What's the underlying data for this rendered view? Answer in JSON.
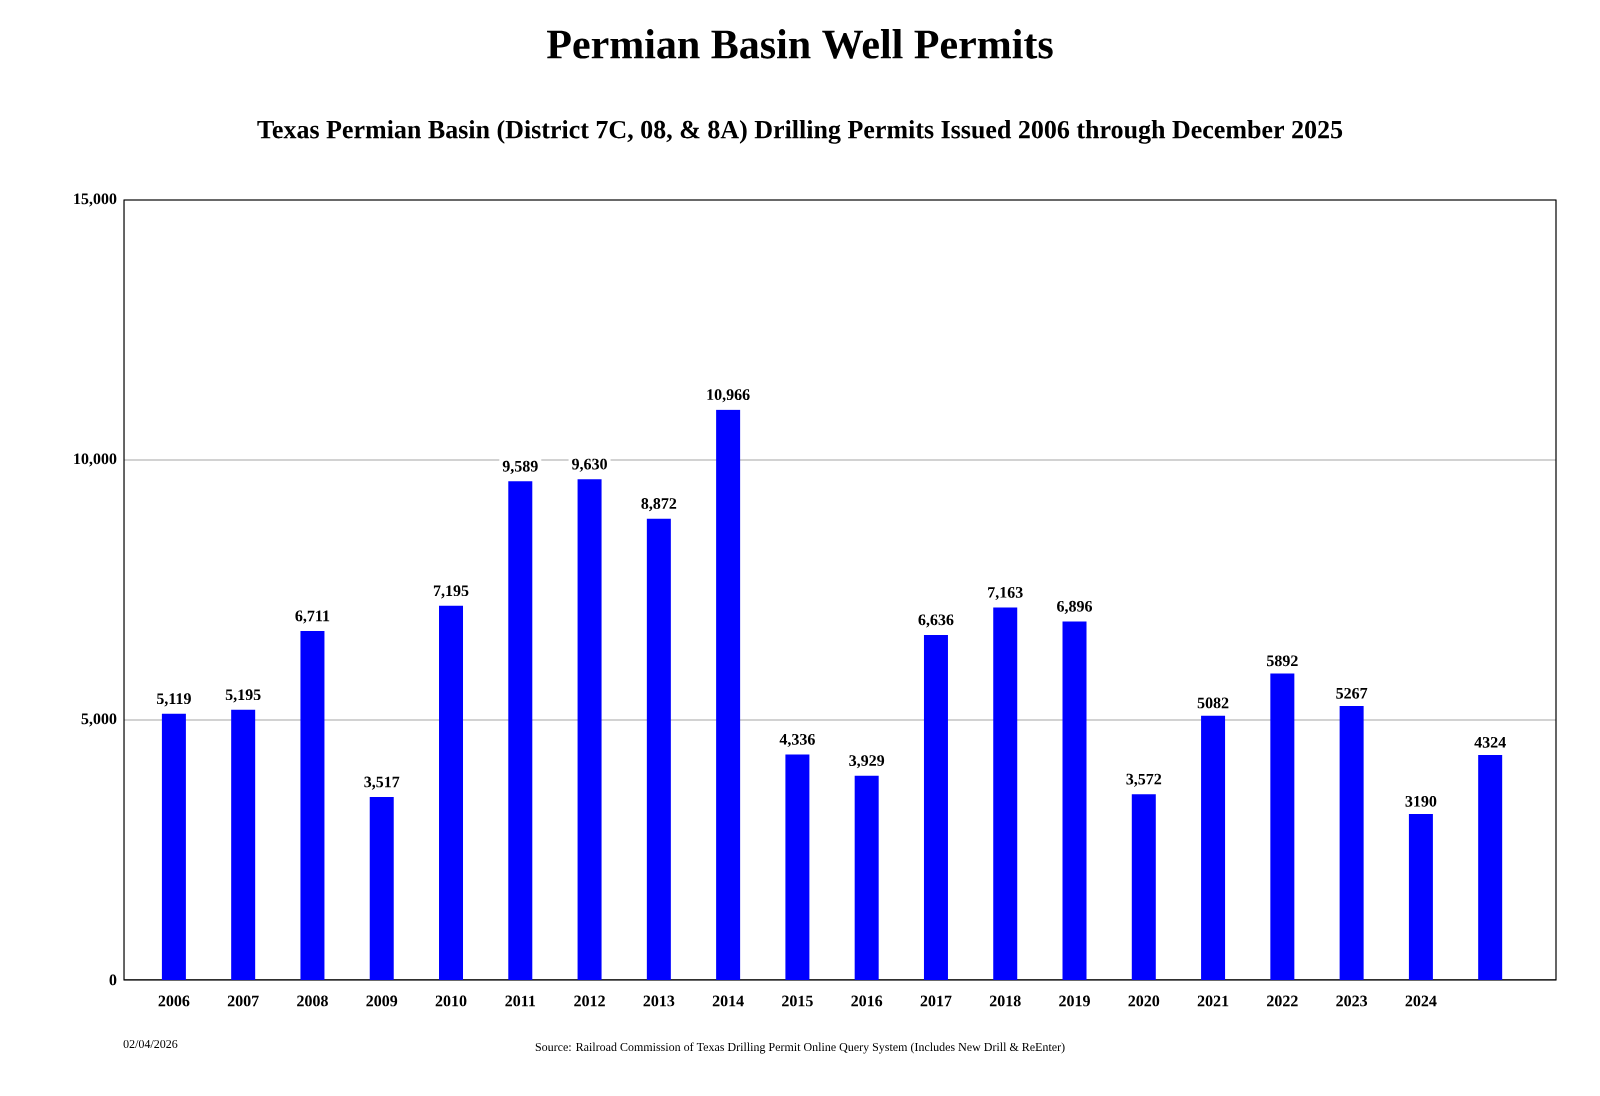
{
  "chart_data": {
    "type": "bar",
    "title": "Permian Basin Well Permits",
    "subtitle": "Texas Permian Basin  (District 7C, 08, & 8A)   Drilling Permits Issued 2006 through December 2025",
    "categories": [
      "2006",
      "2007",
      "2008",
      "2009",
      "2010",
      "2011",
      "2012",
      "2013",
      "2014",
      "2015",
      "2016",
      "2017",
      "2018",
      "2019",
      "2020",
      "2021",
      "2022",
      "2023",
      "2024",
      null
    ],
    "values": [
      5119,
      5195,
      6711,
      3517,
      7195,
      9589,
      9630,
      8872,
      10966,
      4336,
      3929,
      6636,
      7163,
      6896,
      3572,
      5082,
      5892,
      5267,
      3190,
      4324
    ],
    "value_labels": [
      "5,119",
      "5,195",
      "6,711",
      "3,517",
      "7,195",
      "9,589",
      "9,630",
      "8,872",
      "10,966",
      "4,336",
      "3,929",
      "6,636",
      "7,163",
      "6,896",
      "3,572",
      "5082",
      "5892",
      "5267",
      "3190",
      "4324"
    ],
    "color": "#0000ff",
    "ylim": [
      0,
      15000
    ],
    "yticks": [
      0,
      {
        "value": 5000,
        "label": "5,000"
      },
      {
        "value": 10000,
        "label": "10,000"
      },
      {
        "value": 15000,
        "label": "15,000"
      }
    ],
    "grid": "y",
    "annotations": [
      "02/04/2026",
      "Source: Railroad Commission of Texas Drilling Permit Online Query System (Includes New Drill & ReEnter)"
    ]
  }
}
